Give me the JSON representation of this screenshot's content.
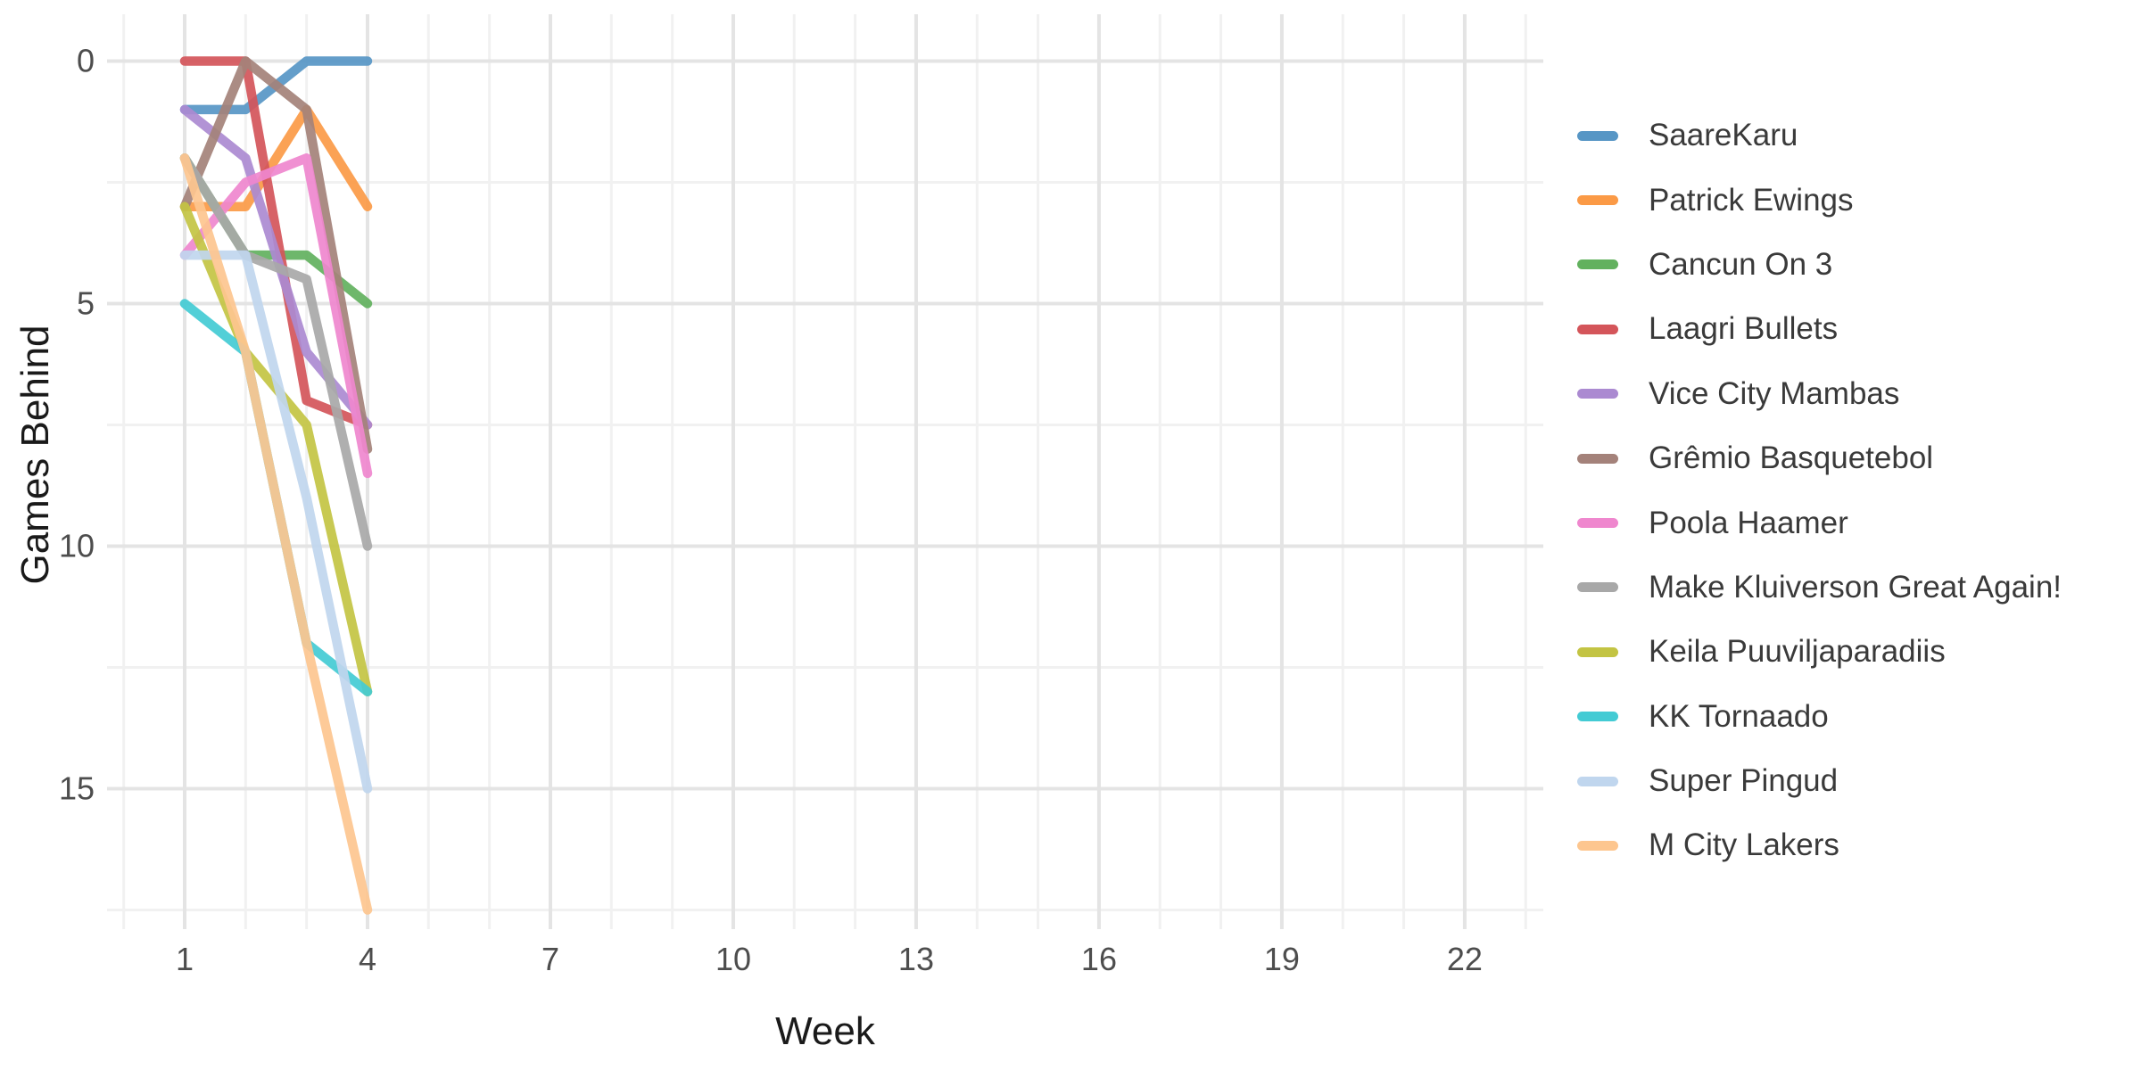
{
  "chart_data": {
    "type": "line",
    "title": "",
    "xlabel": "Week",
    "ylabel": "Games Behind",
    "x_ticks": [
      1,
      4,
      7,
      10,
      13,
      16,
      19,
      22
    ],
    "y_ticks": [
      0,
      5,
      10,
      15
    ],
    "x_minor_ticks": [
      0,
      2,
      3,
      5,
      6,
      8,
      9,
      11,
      12,
      14,
      15,
      17,
      18,
      20,
      21,
      23
    ],
    "y_minor_ticks": [
      2.5,
      7.5,
      12.5,
      17.5
    ],
    "xlim": [
      -0.3,
      23.3
    ],
    "ylim_top_to_bottom": [
      -0.9,
      17.9
    ],
    "y_axis_inverted": true,
    "grid": "on",
    "legend_position": "right",
    "weeks": [
      1,
      2,
      3,
      4
    ],
    "series": [
      {
        "name": "SaareKaru",
        "color": "#5796c5",
        "values": [
          1,
          1,
          0,
          0
        ]
      },
      {
        "name": "Patrick Ewings",
        "color": "#fb9a46",
        "values": [
          3,
          3,
          1,
          3
        ]
      },
      {
        "name": "Cancun On 3",
        "color": "#62b15e",
        "values": [
          2,
          4,
          4,
          5
        ]
      },
      {
        "name": "Laagri Bullets",
        "color": "#d4555a",
        "values": [
          0,
          0,
          7,
          7.5
        ]
      },
      {
        "name": "Vice City Mambas",
        "color": "#ab8ad1",
        "values": [
          1,
          2,
          6,
          7.5
        ]
      },
      {
        "name": "Grêmio Basquetebol",
        "color": "#a4827a",
        "values": [
          3,
          0,
          1,
          8
        ]
      },
      {
        "name": "Poola Haamer",
        "color": "#ef87ce",
        "values": [
          4,
          2.5,
          2,
          8.5
        ]
      },
      {
        "name": "Make Kluiverson Great Again!",
        "color": "#a8a8a8",
        "values": [
          2,
          4,
          4.5,
          10
        ]
      },
      {
        "name": "Keila Puuviljaparadiis",
        "color": "#c3c443",
        "values": [
          3,
          6,
          7.5,
          13
        ]
      },
      {
        "name": "KK Tornaado",
        "color": "#43cbd4",
        "values": [
          5,
          6,
          12,
          13
        ]
      },
      {
        "name": "Super Pingud",
        "color": "#c0d6ee",
        "values": [
          4,
          4,
          9,
          15
        ]
      },
      {
        "name": "M City Lakers",
        "color": "#fdc68f",
        "values": [
          2,
          6,
          12,
          17.5
        ]
      }
    ],
    "colors": {
      "grid_major": "#e4e4e4",
      "grid_minor": "#f1f1f1",
      "tick_label": "#4d4d4d",
      "axis_title": "#1a1a1a",
      "legend_text": "#3a3a3a",
      "background": "#ffffff"
    }
  }
}
